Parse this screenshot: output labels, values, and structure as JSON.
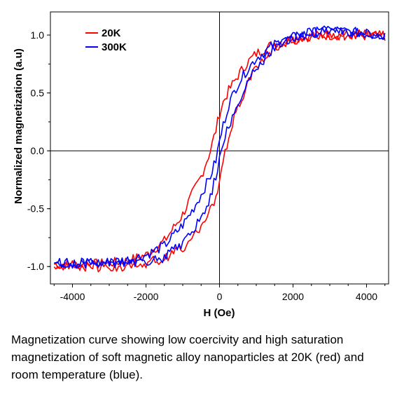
{
  "caption": "Magnetization curve showing low coercivity and high saturation magnetization of soft magnetic alloy nanoparticles at 20K (red) and room temperature (blue).",
  "chart_data": {
    "type": "line",
    "title": "",
    "xlabel": "H (Oe)",
    "ylabel": "Normalized magnetization (a.u)",
    "xlim": [
      -4600,
      4600
    ],
    "ylim": [
      -1.15,
      1.2
    ],
    "xticks": [
      -4000,
      -2000,
      0,
      2000,
      4000
    ],
    "xtick_labels": [
      "-4000",
      "-2000",
      "0",
      "2000",
      "4000"
    ],
    "yticks": [
      -1.0,
      -0.5,
      0.0,
      0.5,
      1.0
    ],
    "ytick_labels": [
      "-1.0",
      "-0.5",
      "0.0",
      "0.5",
      "1.0"
    ],
    "grid": false,
    "legend_position": "top-left",
    "series": [
      {
        "name": "20K",
        "color": "#ff0000",
        "branches": [
          {
            "x": [
              -4500,
              -4000,
              -3500,
              -3000,
              -2500,
              -2000,
              -1500,
              -1000,
              -750,
              -500,
              -250,
              -100,
              0,
              100,
              250,
              500,
              750,
              1000,
              1500,
              2000,
              2500,
              3000,
              3500,
              4000,
              4500
            ],
            "y": [
              -0.98,
              -0.98,
              -0.98,
              -0.97,
              -0.95,
              -0.9,
              -0.78,
              -0.55,
              -0.38,
              -0.22,
              0.0,
              0.18,
              0.32,
              0.42,
              0.52,
              0.65,
              0.76,
              0.84,
              0.93,
              0.97,
              0.99,
              1.0,
              1.0,
              1.0,
              0.99
            ]
          },
          {
            "x": [
              4500,
              4000,
              3500,
              3000,
              2500,
              2000,
              1500,
              1000,
              750,
              500,
              250,
              100,
              0,
              -100,
              -250,
              -500,
              -750,
              -1000,
              -1500,
              -2000,
              -2500,
              -3000,
              -3500,
              -4000,
              -4500
            ],
            "y": [
              0.99,
              1.0,
              1.0,
              1.0,
              0.99,
              0.96,
              0.9,
              0.72,
              0.56,
              0.38,
              0.12,
              -0.1,
              -0.28,
              -0.4,
              -0.52,
              -0.65,
              -0.76,
              -0.84,
              -0.93,
              -0.97,
              -0.99,
              -1.0,
              -1.0,
              -0.99,
              -0.98
            ]
          }
        ]
      },
      {
        "name": "300K",
        "color": "#0000ff",
        "branches": [
          {
            "x": [
              -4500,
              -4000,
              -3500,
              -3000,
              -2500,
              -2000,
              -1500,
              -1000,
              -750,
              -500,
              -250,
              -100,
              0,
              100,
              250,
              500,
              750,
              1000,
              1500,
              2000,
              2500,
              3000,
              3500,
              4000,
              4500
            ],
            "y": [
              -0.97,
              -0.97,
              -0.97,
              -0.96,
              -0.94,
              -0.9,
              -0.82,
              -0.64,
              -0.52,
              -0.38,
              -0.22,
              -0.08,
              0.08,
              0.22,
              0.4,
              0.58,
              0.7,
              0.8,
              0.92,
              0.98,
              1.02,
              1.04,
              1.03,
              1.01,
              1.0
            ]
          },
          {
            "x": [
              4500,
              4000,
              3500,
              3000,
              2500,
              2000,
              1500,
              1000,
              750,
              500,
              250,
              100,
              0,
              -100,
              -250,
              -500,
              -750,
              -1000,
              -1500,
              -2000,
              -2500,
              -3000,
              -3500,
              -4000,
              -4500
            ],
            "y": [
              1.0,
              1.01,
              1.03,
              1.04,
              1.02,
              0.98,
              0.9,
              0.72,
              0.58,
              0.42,
              0.22,
              0.06,
              -0.08,
              -0.22,
              -0.4,
              -0.58,
              -0.7,
              -0.8,
              -0.92,
              -0.96,
              -0.97,
              -0.97,
              -0.97,
              -0.97,
              -0.97
            ]
          }
        ]
      }
    ]
  }
}
